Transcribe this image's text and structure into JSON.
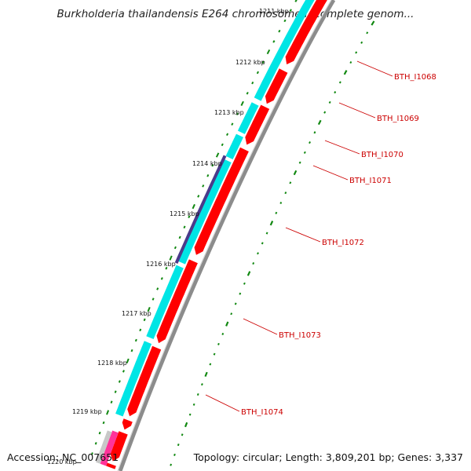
{
  "title": "Burkholderia thailandensis E264 chromosome I, complete genom...",
  "footer": {
    "accession": "Accession: NC_007651",
    "summary": "Topology: circular; Length: 3,809,201 bp; Genes: 3,337"
  },
  "colors": {
    "forward_cds": "#ff0000",
    "reverse_cds": "#00e5e5",
    "other_feature": "#4a3a8a",
    "backbone": "#8c8c8c",
    "tick": "#118811",
    "label": "#cc0000",
    "pink_feature": "#ff3399",
    "grey_feature": "#c8c8c8"
  },
  "ruler": {
    "labels": [
      "1211 kbp",
      "1212 kbp",
      "1213 kbp",
      "1214 kbp",
      "1215 kbp",
      "1216 kbp",
      "1217 kbp",
      "1218 kbp",
      "1219 kbp",
      "1220 kbp"
    ]
  },
  "genes": [
    "BTH_I1068",
    "BTH_I1069",
    "BTH_I1070",
    "BTH_I1071",
    "BTH_I1072",
    "BTH_I1073",
    "BTH_I1074"
  ]
}
